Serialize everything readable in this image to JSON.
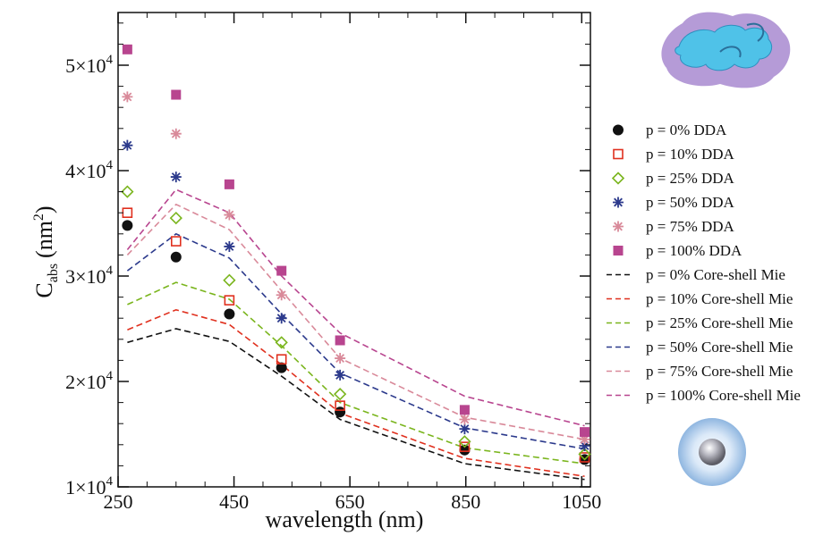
{
  "chart_data": {
    "type": "scatter",
    "title": "",
    "xlabel": "wavelength  (nm)",
    "ylabel_main": "C",
    "ylabel_sub": "abs",
    "ylabel_units": "(nm",
    "ylabel_sup": "2",
    "ylabel_close": ")",
    "xlim": [
      250,
      1065
    ],
    "ylim": [
      10000,
      55000
    ],
    "x_ticks": [
      250,
      450,
      650,
      850,
      1050
    ],
    "y_ticks": [
      10000,
      20000,
      30000,
      40000,
      50000
    ],
    "y_tick_labels": [
      {
        "mant": "1×10",
        "exp": "4"
      },
      {
        "mant": "2×10",
        "exp": "4"
      },
      {
        "mant": "3×10",
        "exp": "4"
      },
      {
        "mant": "4×10",
        "exp": "4"
      },
      {
        "mant": "5×10",
        "exp": "4"
      }
    ],
    "grid": false,
    "legend_position": "right, outside",
    "dda_x": [
      266,
      350,
      442,
      532,
      633,
      848,
      1055
    ],
    "mie_x": [
      266,
      350,
      442,
      532,
      633,
      848,
      1055
    ],
    "series": [
      {
        "name": "p =    0%  DDA",
        "kind": "dda",
        "marker": "circle",
        "color": "#111111",
        "values": [
          34800,
          31800,
          26400,
          21300,
          17100,
          13500,
          12600
        ]
      },
      {
        "name": "p =  10%  DDA",
        "kind": "dda",
        "marker": "square-open",
        "color": "#e0301e",
        "values": [
          36000,
          33300,
          27700,
          22100,
          17700,
          13800,
          12800
        ]
      },
      {
        "name": "p =  25%  DDA",
        "kind": "dda",
        "marker": "diamond-open",
        "color": "#7ab51d",
        "values": [
          38000,
          35500,
          29600,
          23700,
          18800,
          14300,
          13100
        ]
      },
      {
        "name": "p =  50%  DDA",
        "kind": "dda",
        "marker": "asterisk",
        "color": "#2c3a8c",
        "values": [
          42400,
          39400,
          32800,
          26000,
          20600,
          15500,
          13900
        ]
      },
      {
        "name": "p =  75%  DDA",
        "kind": "dda",
        "marker": "asterisk",
        "color": "#d98a9a",
        "values": [
          47000,
          43500,
          35800,
          28200,
          22200,
          16400,
          14500
        ]
      },
      {
        "name": "p = 100%  DDA",
        "kind": "dda",
        "marker": "square-filled",
        "color": "#b8458f",
        "values": [
          51500,
          47200,
          38700,
          30500,
          23900,
          17300,
          15200
        ]
      },
      {
        "name": "p =    0% Core-shell Mie",
        "kind": "mie",
        "color": "#111111",
        "values": [
          23700,
          25000,
          23800,
          20500,
          16400,
          12200,
          10700
        ]
      },
      {
        "name": "p =  10% Core-shell Mie",
        "kind": "mie",
        "color": "#e0301e",
        "values": [
          24900,
          26800,
          25400,
          21600,
          17000,
          12700,
          11000
        ]
      },
      {
        "name": "p =  25% Core-shell Mie",
        "kind": "mie",
        "color": "#7ab51d",
        "values": [
          27300,
          29400,
          27800,
          23400,
          18000,
          13700,
          12200
        ]
      },
      {
        "name": "p =  50% Core-shell Mie",
        "kind": "mie",
        "color": "#2c3a8c",
        "values": [
          30500,
          34000,
          31700,
          26400,
          20800,
          15600,
          13600
        ]
      },
      {
        "name": "p =  75% Core-shell Mie",
        "kind": "mie",
        "color": "#d98a9a",
        "values": [
          32000,
          36800,
          34400,
          28600,
          22200,
          16600,
          14500
        ]
      },
      {
        "name": "p = 100% Core-shell Mie",
        "kind": "mie",
        "color": "#b8458f",
        "values": [
          32500,
          38200,
          36000,
          30000,
          24600,
          18600,
          15800
        ]
      }
    ]
  },
  "illustrations": {
    "top_icon": "irregular-aggregate-blob-icon",
    "bottom_icon": "core-shell-sphere-icon",
    "blob_outer_color": "#a88ad0",
    "blob_inner_color": "#4fc2e8",
    "sphere_shell_color": "#bcd8f2",
    "sphere_core_color": "#8a8a92"
  }
}
